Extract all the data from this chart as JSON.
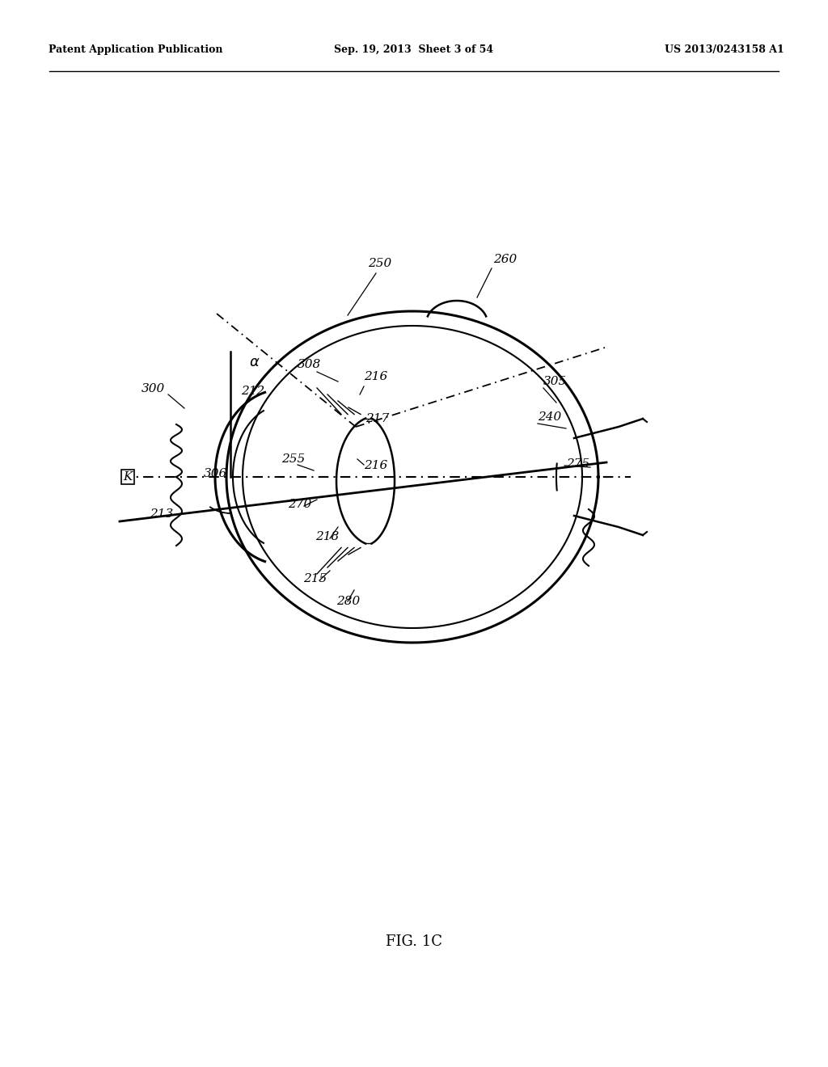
{
  "bg_color": "#ffffff",
  "header_left": "Patent Application Publication",
  "header_mid": "Sep. 19, 2013  Sheet 3 of 54",
  "header_right": "US 2013/0243158 A1",
  "caption": "FIG. 1C"
}
